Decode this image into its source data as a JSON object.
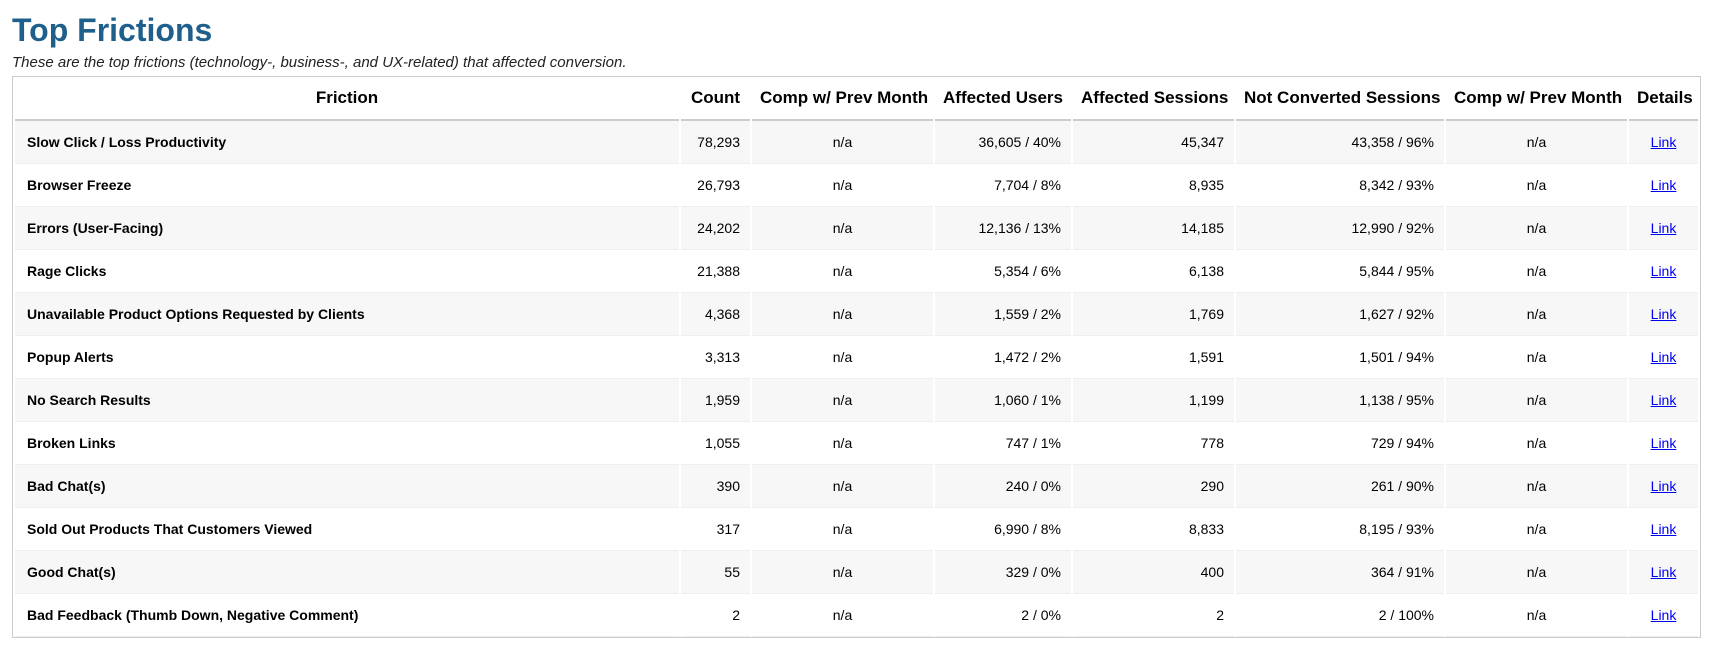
{
  "header": {
    "title": "Top Frictions",
    "subtitle": "These are the top frictions (technology-, business-, and UX-related) that affected conversion."
  },
  "table": {
    "columns": [
      "Friction",
      "Count",
      "Comp w/ Prev Month",
      "Affected Users",
      "Affected Sessions",
      "Not Converted Sessions",
      "Comp w/ Prev Month",
      "Details"
    ],
    "rows": [
      [
        "Slow Click / Loss Productivity",
        "78,293",
        "n/a",
        "36,605 / 40%",
        "45,347",
        "43,358 / 96%",
        "n/a",
        "Link"
      ],
      [
        "Browser Freeze",
        "26,793",
        "n/a",
        "7,704 / 8%",
        "8,935",
        "8,342 / 93%",
        "n/a",
        "Link"
      ],
      [
        "Errors (User-Facing)",
        "24,202",
        "n/a",
        "12,136 / 13%",
        "14,185",
        "12,990 / 92%",
        "n/a",
        "Link"
      ],
      [
        "Rage Clicks",
        "21,388",
        "n/a",
        "5,354 / 6%",
        "6,138",
        "5,844 / 95%",
        "n/a",
        "Link"
      ],
      [
        "Unavailable Product Options Requested by Clients",
        "4,368",
        "n/a",
        "1,559 / 2%",
        "1,769",
        "1,627 / 92%",
        "n/a",
        "Link"
      ],
      [
        "Popup Alerts",
        "3,313",
        "n/a",
        "1,472 / 2%",
        "1,591",
        "1,501 / 94%",
        "n/a",
        "Link"
      ],
      [
        "No Search Results",
        "1,959",
        "n/a",
        "1,060 / 1%",
        "1,199",
        "1,138 / 95%",
        "n/a",
        "Link"
      ],
      [
        "Broken Links",
        "1,055",
        "n/a",
        "747 / 1%",
        "778",
        "729 / 94%",
        "n/a",
        "Link"
      ],
      [
        "Bad Chat(s)",
        "390",
        "n/a",
        "240 / 0%",
        "290",
        "261 / 90%",
        "n/a",
        "Link"
      ],
      [
        "Sold Out Products That Customers Viewed",
        "317",
        "n/a",
        "6,990 / 8%",
        "8,833",
        "8,195 / 93%",
        "n/a",
        "Link"
      ],
      [
        "Good Chat(s)",
        "55",
        "n/a",
        "329 / 0%",
        "400",
        "364 / 91%",
        "n/a",
        "Link"
      ],
      [
        "Bad Feedback (Thumb Down, Negative Comment)",
        "2",
        "n/a",
        "2 / 0%",
        "2",
        "2 / 100%",
        "n/a",
        "Link"
      ]
    ]
  }
}
